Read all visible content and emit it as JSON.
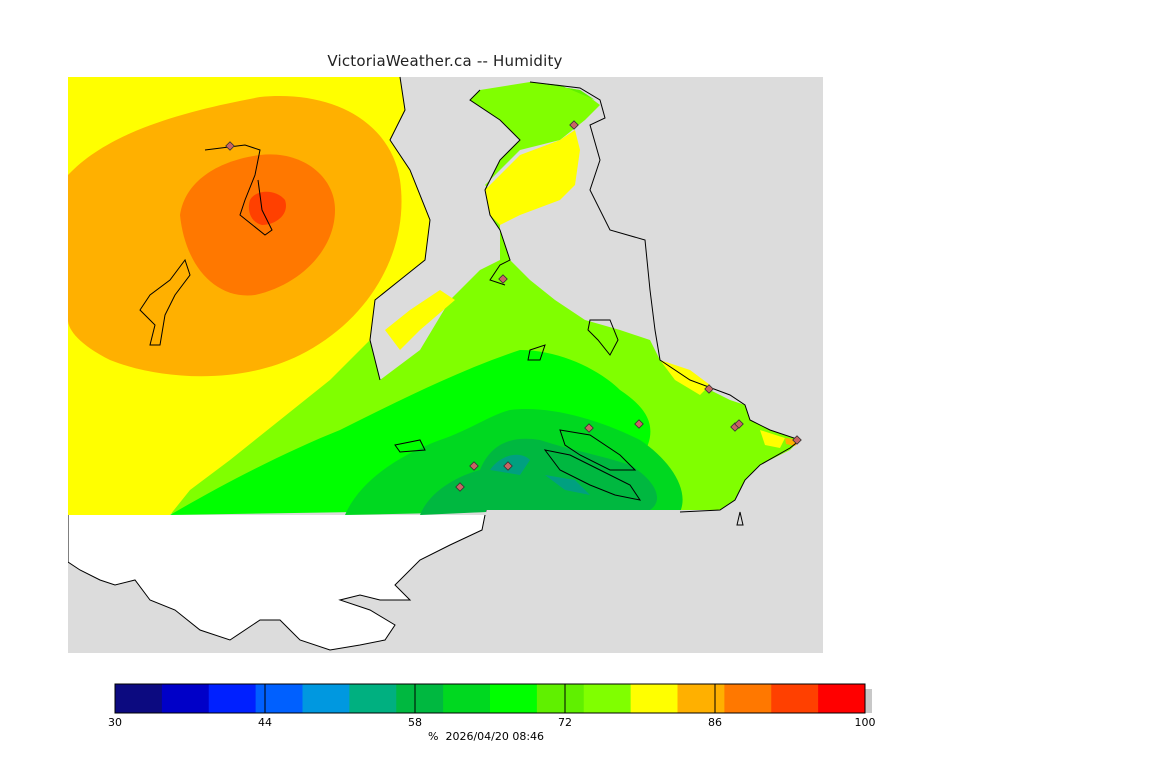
{
  "title": "VictoriaWeather.ca -- Humidity",
  "legend": {
    "unit": "%",
    "timestamp": "2026/04/20 08:46",
    "labels": [
      "30",
      "44",
      "58",
      "72",
      "86",
      "100"
    ],
    "colors": [
      "#0c0a80",
      "#0000c8",
      "#0020ff",
      "#0060ff",
      "#0098e0",
      "#00b080",
      "#00b840",
      "#00d820",
      "#00ff00",
      "#60f000",
      "#80ff00",
      "#ffff00",
      "#ffb000",
      "#ff7800",
      "#ff4000",
      "#ff0000"
    ]
  },
  "map": {
    "land_color": "#ffffff",
    "water_color": "#dcdcdc",
    "station_count": 14
  }
}
